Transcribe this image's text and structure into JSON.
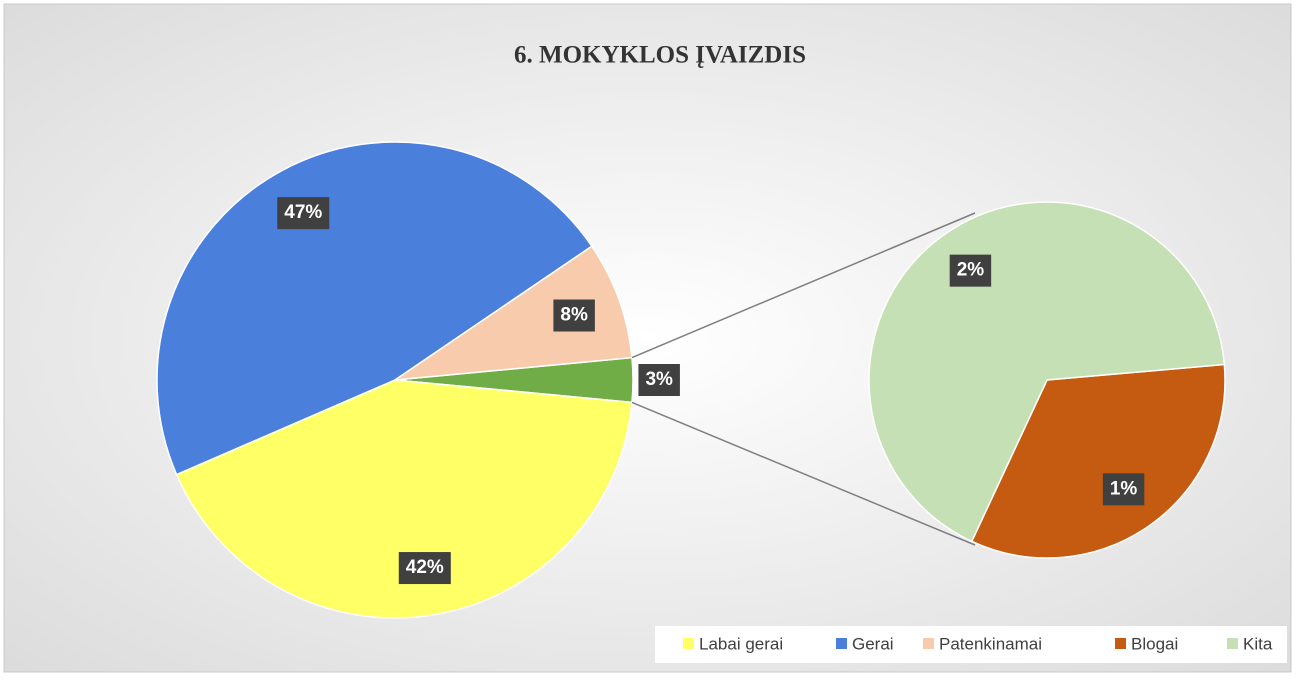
{
  "chart_data": {
    "type": "pie-of-pie",
    "title": "6. MOKYKLOS ĮVAIZDIS",
    "categories": [
      "Labai gerai",
      "Gerai",
      "Patenkinamai",
      "Blogai",
      "Kita"
    ],
    "values": [
      42,
      47,
      8,
      1,
      2
    ],
    "value_labels": [
      "42%",
      "47%",
      "8%",
      "1%",
      "2%"
    ],
    "colors": [
      "#ffff66",
      "#4a80dc",
      "#f8cbad",
      "#c55a11",
      "#c5e0b4"
    ],
    "secondary_count": 2,
    "combined_value": 3,
    "combined_label": "3%",
    "combined_color": "#70ad47",
    "legend": "bottom-right"
  }
}
